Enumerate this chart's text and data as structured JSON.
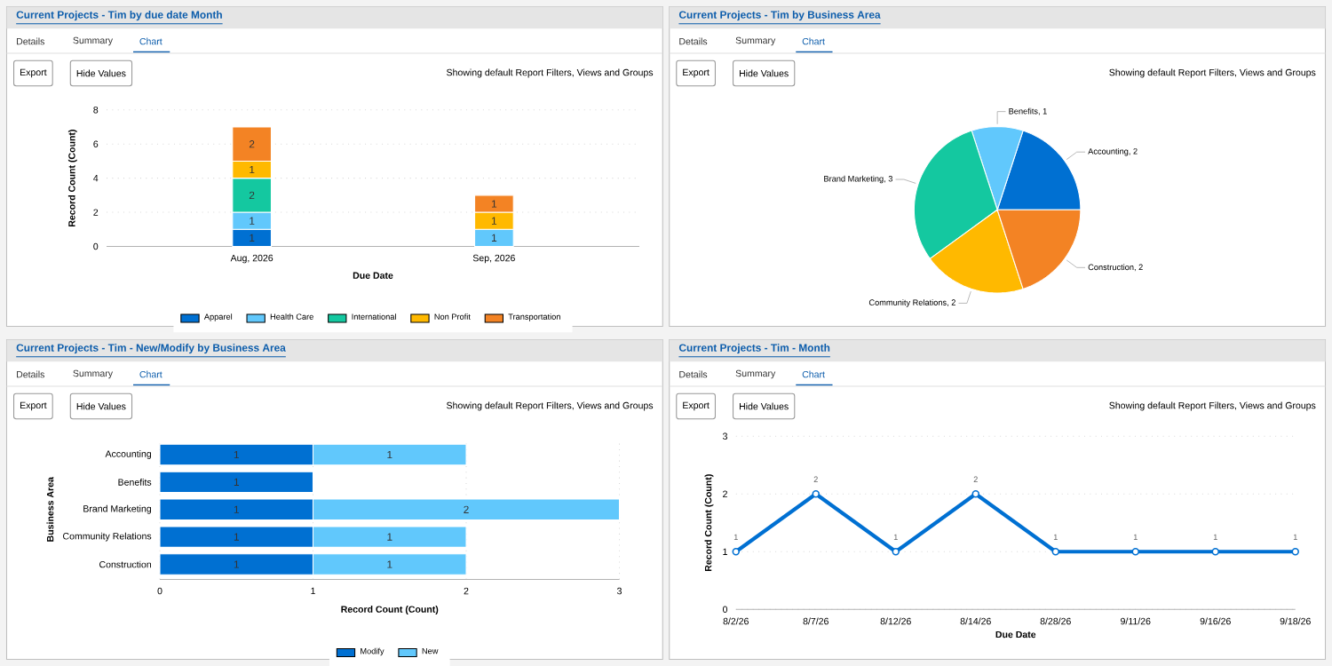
{
  "chart_data": [
    {
      "type": "bar",
      "stacked": true,
      "title": "Current Projects - Tim by due date Month",
      "xlabel": "Due Date",
      "ylabel": "Record Count (Count)",
      "categories": [
        "Aug, 2026",
        "Sep, 2026"
      ],
      "series": [
        {
          "name": "Apparel",
          "color": "#0070d2",
          "values": [
            1,
            null
          ],
          "value_labels": [
            "1",
            null
          ]
        },
        {
          "name": "Health Care",
          "color": "#61c8fc",
          "values": [
            1,
            1
          ],
          "value_labels": [
            "1",
            "1"
          ]
        },
        {
          "name": "International",
          "color": "#14c8a0",
          "values": [
            2,
            null
          ],
          "value_labels": [
            "2",
            null
          ]
        },
        {
          "name": "Non Profit",
          "color": "#ffb900",
          "values": [
            1,
            1
          ],
          "value_labels": [
            "1",
            "1"
          ]
        },
        {
          "name": "Transportation",
          "color": "#f38324",
          "values": [
            2,
            1
          ],
          "value_labels": [
            "2",
            "1"
          ]
        }
      ],
      "ylim": [
        0,
        8
      ],
      "yticks": [
        0,
        2,
        4,
        6,
        8
      ],
      "grid": "y",
      "legend": "bottom",
      "annotations": [
        "Details",
        "Summary",
        "Chart",
        "Export",
        "Hide Values",
        "Showing default Report Filters, Views and Groups"
      ]
    },
    {
      "type": "pie",
      "title": "Current Projects - Tim by Business Area",
      "categories": [
        "Accounting",
        "Benefits",
        "Brand Marketing",
        "Community Relations",
        "Construction"
      ],
      "values": [
        2,
        1,
        3,
        2,
        2
      ],
      "value_labels": [
        ", 2",
        ", 1",
        ", 3",
        ", 2",
        ", 2"
      ],
      "colors": [
        "#0070d2",
        "#61c8fc",
        "#14c8a0",
        "#ffb900",
        "#f38324"
      ],
      "data_labels": true,
      "annotations": [
        "Details",
        "Summary",
        "Chart",
        "Export",
        "Hide Values",
        "Showing default Report Filters, Views and Groups"
      ]
    },
    {
      "type": "bar",
      "stacked": true,
      "orientation": "horizontal",
      "title": "Current Projects - Tim - New/Modify by Business Area",
      "xlabel": "Record Count (Count)",
      "ylabel": "Business Area",
      "categories": [
        "Accounting",
        "Benefits",
        "Brand Marketing",
        "Community Relations",
        "Construction"
      ],
      "series": [
        {
          "name": "Modify",
          "color": "#0070d2",
          "values": [
            1,
            1,
            1,
            1,
            1
          ],
          "value_labels": [
            "1",
            "1",
            "1",
            "1",
            "1"
          ]
        },
        {
          "name": "New",
          "color": "#61c8fc",
          "values": [
            1,
            null,
            2,
            1,
            1
          ],
          "value_labels": [
            "1",
            null,
            "2",
            "1",
            "1"
          ]
        }
      ],
      "xlim": [
        0,
        3
      ],
      "xticks": [
        0,
        1,
        2,
        3
      ],
      "grid": "x",
      "legend": "bottom",
      "annotations": [
        "Details",
        "Summary",
        "Chart",
        "Export",
        "Hide Values",
        "Showing default Report Filters, Views and Groups"
      ]
    },
    {
      "type": "line",
      "title": "Current Projects - Tim - Month",
      "xlabel": "Due Date",
      "ylabel": "Record Count (Count)",
      "categories": [
        "8/2/26",
        "8/7/26",
        "8/12/26",
        "8/14/26",
        "8/28/26",
        "9/11/26",
        "9/16/26",
        "9/18/26"
      ],
      "series": [
        {
          "color": "#0070d2",
          "values": [
            1,
            2,
            1,
            2,
            1,
            1,
            1,
            1
          ]
        }
      ],
      "ylim": [
        0,
        3
      ],
      "yticks": [
        0,
        1,
        2,
        3
      ],
      "grid": "y",
      "marker": "circle",
      "data_labels": true,
      "annotations": [
        "Details",
        "Summary",
        "Chart",
        "Export",
        "Hide Values",
        "Showing default Report Filters, Views and Groups"
      ]
    }
  ]
}
